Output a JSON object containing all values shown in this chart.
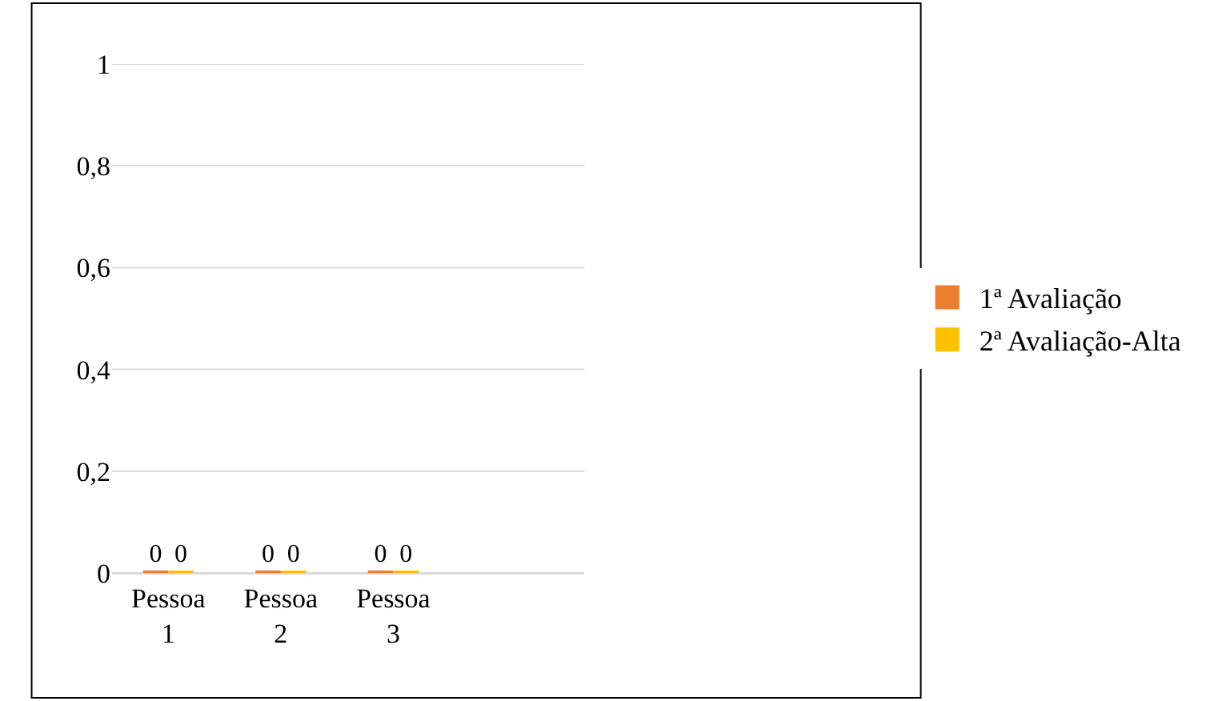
{
  "chart_data": {
    "type": "bar",
    "categories": [
      "Pessoa 1",
      "Pessoa 2",
      "Pessoa 3"
    ],
    "series": [
      {
        "name": "1ª Avaliação",
        "color": "#ed7d31",
        "values": [
          0,
          0,
          0
        ]
      },
      {
        "name": "2ª Avaliação-Alta",
        "color": "#ffc000",
        "values": [
          0,
          0,
          0
        ]
      }
    ],
    "ylim": [
      0,
      1
    ],
    "yticks": [
      0,
      {
        "value": 0.2,
        "label": "0,2"
      },
      {
        "value": 0.4,
        "label": "0,4"
      },
      {
        "value": 0.6,
        "label": "0,6"
      },
      {
        "value": 0.8,
        "label": "0,8"
      },
      1
    ],
    "grid": "y",
    "legend": "right",
    "data_labels": true
  }
}
